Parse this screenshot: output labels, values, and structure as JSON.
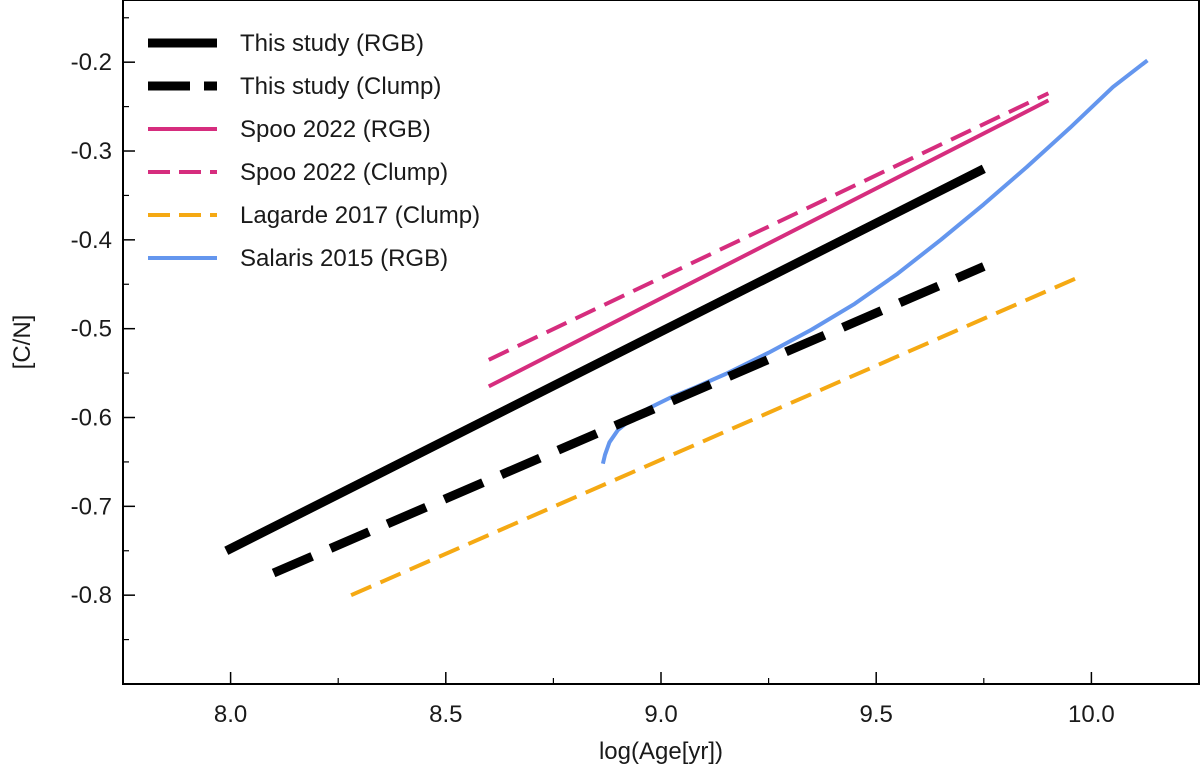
{
  "chart_data": {
    "type": "line",
    "title": "",
    "xlabel": "log(Age[yr])",
    "ylabel": "[C/N]",
    "xlim": [
      7.75,
      10.25
    ],
    "ylim": [
      -0.9,
      -0.13
    ],
    "xticks": [
      8.0,
      8.5,
      9.0,
      9.5,
      10.0
    ],
    "xtick_labels": [
      "8.0",
      "8.5",
      "9.0",
      "9.5",
      "10.0"
    ],
    "xminor_step": 0.25,
    "yticks": [
      -0.8,
      -0.7,
      -0.6,
      -0.5,
      -0.4,
      -0.3,
      -0.2
    ],
    "ytick_labels": [
      "-0.8",
      "-0.7",
      "-0.6",
      "-0.5",
      "-0.4",
      "-0.3",
      "-0.2"
    ],
    "yminor_step": 0.05,
    "grid": false,
    "legend_position": "top-left",
    "series": [
      {
        "name": "This study (RGB)",
        "color": "#000000",
        "style": "solid",
        "weight": "heavy",
        "x": [
          7.99,
          9.75
        ],
        "y": [
          -0.75,
          -0.32
        ]
      },
      {
        "name": "This study (Clump)",
        "color": "#000000",
        "style": "dashed",
        "weight": "heavy",
        "x": [
          8.1,
          9.75
        ],
        "y": [
          -0.775,
          -0.43
        ]
      },
      {
        "name": "Spoo 2022 (RGB)",
        "color": "#d62d7e",
        "style": "solid",
        "weight": "normal",
        "x": [
          8.6,
          9.9
        ],
        "y": [
          -0.565,
          -0.243
        ]
      },
      {
        "name": "Spoo 2022 (Clump)",
        "color": "#d62d7e",
        "style": "dashed",
        "weight": "normal",
        "x": [
          8.6,
          9.9
        ],
        "y": [
          -0.535,
          -0.235
        ]
      },
      {
        "name": "Lagarde 2017 (Clump)",
        "color": "#f5a913",
        "style": "dashed",
        "weight": "normal",
        "x": [
          8.28,
          9.98
        ],
        "y": [
          -0.8,
          -0.44
        ]
      },
      {
        "name": "Salaris 2015 (RGB)",
        "color": "#6496ee",
        "style": "solid",
        "weight": "normal",
        "x": [
          8.865,
          8.87,
          8.88,
          8.9,
          8.93,
          8.97,
          9.02,
          9.08,
          9.15,
          9.25,
          9.35,
          9.45,
          9.55,
          9.65,
          9.75,
          9.85,
          9.95,
          10.05,
          10.13
        ],
        "y": [
          -0.652,
          -0.642,
          -0.628,
          -0.614,
          -0.602,
          -0.59,
          -0.578,
          -0.566,
          -0.551,
          -0.527,
          -0.501,
          -0.472,
          -0.438,
          -0.4,
          -0.36,
          -0.318,
          -0.274,
          -0.228,
          -0.198
        ]
      }
    ]
  }
}
